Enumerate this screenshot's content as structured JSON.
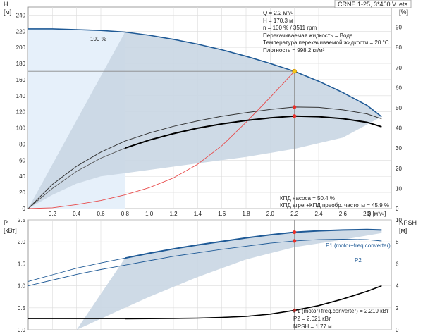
{
  "header": {
    "pump_label": "CRNE 1-25, 3*460 V"
  },
  "colors": {
    "curve_blue": "#1f5a96",
    "region_fill": "#c9d6e3",
    "region_light": "#e6f0fa",
    "marker_red": "#e8302a",
    "duty_point": "#f5c518",
    "system_curve": "#e84a4a",
    "grid": "#dcdcdc",
    "dropline": "#888888"
  },
  "upper_chart": {
    "ylabel_h": "H",
    "ylabel_h_unit": "[м]",
    "ylabel_eta": "eta",
    "ylabel_eta_unit": "[%]",
    "speed_label": "100 %",
    "info_lines": [
      "Q = 2.2 м³/ч",
      "H = 170.3 м",
      "n = 100 % / 3511 rpm",
      "Перекачиваемая жидкость = Вода",
      "Температура перекачиваемой жидкости = 20 °C",
      "Плотность = 998.2 кг/м³"
    ],
    "eff_lines": [
      "КПД насоса = 50.4 %",
      "КПД агрег+КПД преобр. частоты = 45.9 %"
    ],
    "h_ticks": [
      "0",
      "20",
      "40",
      "60",
      "80",
      "100",
      "120",
      "140",
      "160",
      "180",
      "200",
      "220",
      "240"
    ],
    "eta_ticks": [
      "0",
      "10",
      "20",
      "30",
      "40",
      "50",
      "60",
      "70",
      "80",
      "90"
    ]
  },
  "x_axis": {
    "ticks": [
      "0.2",
      "0.4",
      "0.6",
      "0.8",
      "1.0",
      "1.2",
      "1.4",
      "1.6",
      "1.8",
      "2.0",
      "2.2",
      "2.4",
      "2.6",
      "2.8"
    ],
    "label": "Q [м³/ч]"
  },
  "lower_chart": {
    "ylabel_p": "P",
    "ylabel_p_unit": "[кВт]",
    "ylabel_npsh": "NPSH",
    "ylabel_npsh_unit": "[м]",
    "p_ticks": [
      "0.0",
      "0.5",
      "1.0",
      "1.5",
      "2.0",
      "2.5"
    ],
    "npsh_ticks": [
      "0",
      "2",
      "4",
      "6",
      "8",
      "10"
    ],
    "p1_legend": "P1 (motor+freq.converter)",
    "p2_legend": "P2",
    "info_lines": [
      "P1 (motor+freq.converter) = 2.219 кВт",
      "P2 = 2.021 кВт",
      "NPSH = 1.77 м"
    ]
  },
  "chart_data": [
    {
      "type": "line",
      "title": "",
      "xlabel": "Q [м³/ч]",
      "ylabel": "H [м]",
      "y2label": "eta [%]",
      "xlim": [
        0,
        3.0
      ],
      "ylim": [
        0,
        250
      ],
      "y2lim": [
        0,
        100
      ],
      "grid": true,
      "series": [
        {
          "name": "100 %",
          "axis": "H",
          "x": [
            0.0,
            0.2,
            0.4,
            0.6,
            0.8,
            1.0,
            1.2,
            1.4,
            1.6,
            1.8,
            2.0,
            2.2,
            2.4,
            2.6,
            2.8,
            2.92
          ],
          "values": [
            223,
            223,
            222,
            221,
            219,
            215,
            210,
            204,
            197,
            189,
            180,
            170.3,
            158,
            144,
            128,
            114
          ]
        },
        {
          "axis": "H",
          "x": [
            0.0,
            0.2,
            0.4,
            0.6,
            0.8,
            1.0,
            1.2,
            1.4,
            1.6,
            1.8,
            2.0,
            2.2
          ],
          "values": [
            0,
            1,
            5,
            10,
            17,
            26,
            38,
            55,
            78,
            107,
            138,
            170.3
          ]
        },
        {
          "axis": "eta",
          "x": [
            0.0,
            0.2,
            0.4,
            0.6,
            0.8,
            1.0,
            1.2,
            1.4,
            1.6,
            1.8,
            2.0,
            2.2,
            2.4,
            2.6,
            2.8,
            2.92
          ],
          "values": [
            0,
            12,
            21,
            28,
            33.5,
            37.5,
            40.8,
            43.5,
            45.8,
            47.6,
            49.2,
            50.4,
            50.2,
            49,
            47,
            44.5
          ]
        },
        {
          "axis": "eta",
          "x": [
            0.0,
            0.2,
            0.4,
            0.6,
            0.8,
            1.0,
            1.2,
            1.4,
            1.6,
            1.8,
            2.0,
            2.2,
            2.4,
            2.6,
            2.8,
            2.92
          ],
          "values": [
            0,
            10,
            18.5,
            25,
            30,
            34,
            37.2,
            39.9,
            42,
            43.7,
            45,
            45.9,
            45.6,
            44.6,
            42.8,
            40.6
          ]
        }
      ],
      "duty_point": {
        "x": 2.2,
        "H": 170.3,
        "eta_pump": 50.4,
        "eta_total": 45.9
      }
    },
    {
      "type": "line",
      "title": "",
      "xlabel": "Q [м³/ч]",
      "ylabel": "P [кВт]",
      "y2label": "NPSH [м]",
      "xlim": [
        0,
        3.0
      ],
      "ylim": [
        0,
        2.5
      ],
      "y2lim": [
        0,
        10
      ],
      "grid": true,
      "series": [
        {
          "name": "P1 (motor+freq.converter)",
          "axis": "P",
          "x": [
            0.0,
            0.2,
            0.4,
            0.6,
            0.8,
            1.0,
            1.2,
            1.4,
            1.6,
            1.8,
            2.0,
            2.2,
            2.4,
            2.6,
            2.8,
            2.92
          ],
          "values": [
            1.1,
            1.25,
            1.4,
            1.52,
            1.63,
            1.74,
            1.84,
            1.93,
            2.01,
            2.09,
            2.16,
            2.219,
            2.25,
            2.27,
            2.28,
            2.27
          ]
        },
        {
          "name": "P2",
          "axis": "P",
          "x": [
            0.0,
            0.2,
            0.4,
            0.6,
            0.8,
            1.0,
            1.2,
            1.4,
            1.6,
            1.8,
            2.0,
            2.2,
            2.4,
            2.6,
            2.8,
            2.92
          ],
          "values": [
            1.0,
            1.13,
            1.26,
            1.37,
            1.47,
            1.57,
            1.67,
            1.75,
            1.83,
            1.9,
            1.97,
            2.021,
            2.05,
            2.06,
            2.05,
            2.02
          ]
        },
        {
          "name": "NPSH",
          "axis": "NPSH",
          "x": [
            0.0,
            0.2,
            0.4,
            0.6,
            0.8,
            1.0,
            1.2,
            1.4,
            1.6,
            1.8,
            2.0,
            2.2,
            2.4,
            2.6,
            2.8,
            2.92
          ],
          "values": [
            1.0,
            1.0,
            1.0,
            1.0,
            1.0,
            1.01,
            1.03,
            1.06,
            1.12,
            1.22,
            1.42,
            1.77,
            2.2,
            2.8,
            3.5,
            4.0
          ]
        }
      ],
      "duty_point": {
        "x": 2.2,
        "P1": 2.219,
        "P2": 2.021,
        "NPSH": 1.77
      }
    }
  ]
}
